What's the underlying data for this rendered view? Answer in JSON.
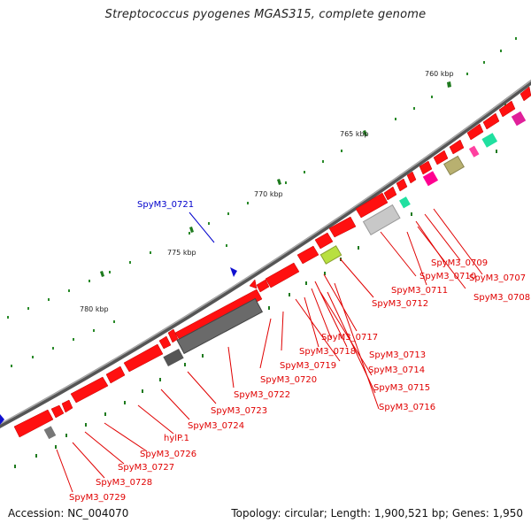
{
  "title": "Streptococcus pyogenes MGAS315, complete genome",
  "footer": {
    "accession": "Accession: NC_004070",
    "summary": "Topology: circular; Length: 1,900,521 bp; Genes: 1,950"
  },
  "scale_ticks": [
    "760 kbp",
    "765 kbp",
    "770 kbp",
    "775 kbp",
    "780 kbp"
  ],
  "colors": {
    "cds": "#ff0000",
    "label_red": "#e00000",
    "label_blue": "#0000cc",
    "backbone": "#555555",
    "gray_feature": "#666666"
  },
  "gene_labels": [
    {
      "text": "SpyM3_0721",
      "color": "blue"
    },
    {
      "text": "SpyM3_0709",
      "color": "red"
    },
    {
      "text": "SpyM3_0710",
      "color": "red"
    },
    {
      "text": "SpyM3_0707",
      "color": "red"
    },
    {
      "text": "SpyM3_0708",
      "color": "red"
    },
    {
      "text": "SpyM3_0711",
      "color": "red"
    },
    {
      "text": "SpyM3_0712",
      "color": "red"
    },
    {
      "text": "SpyM3_0717",
      "color": "red"
    },
    {
      "text": "SpyM3_0718",
      "color": "red"
    },
    {
      "text": "SpyM3_0713",
      "color": "red"
    },
    {
      "text": "SpyM3_0719",
      "color": "red"
    },
    {
      "text": "SpyM3_0714",
      "color": "red"
    },
    {
      "text": "SpyM3_0720",
      "color": "red"
    },
    {
      "text": "SpyM3_0715",
      "color": "red"
    },
    {
      "text": "SpyM3_0722",
      "color": "red"
    },
    {
      "text": "SpyM3_0716",
      "color": "red"
    },
    {
      "text": "SpyM3_0723",
      "color": "red"
    },
    {
      "text": "SpyM3_0724",
      "color": "red"
    },
    {
      "text": "hylP.1",
      "color": "red"
    },
    {
      "text": "SpyM3_0726",
      "color": "red"
    },
    {
      "text": "SpyM3_0727",
      "color": "red"
    },
    {
      "text": "SpyM3_0728",
      "color": "red"
    },
    {
      "text": "SpyM3_0729",
      "color": "red"
    }
  ]
}
